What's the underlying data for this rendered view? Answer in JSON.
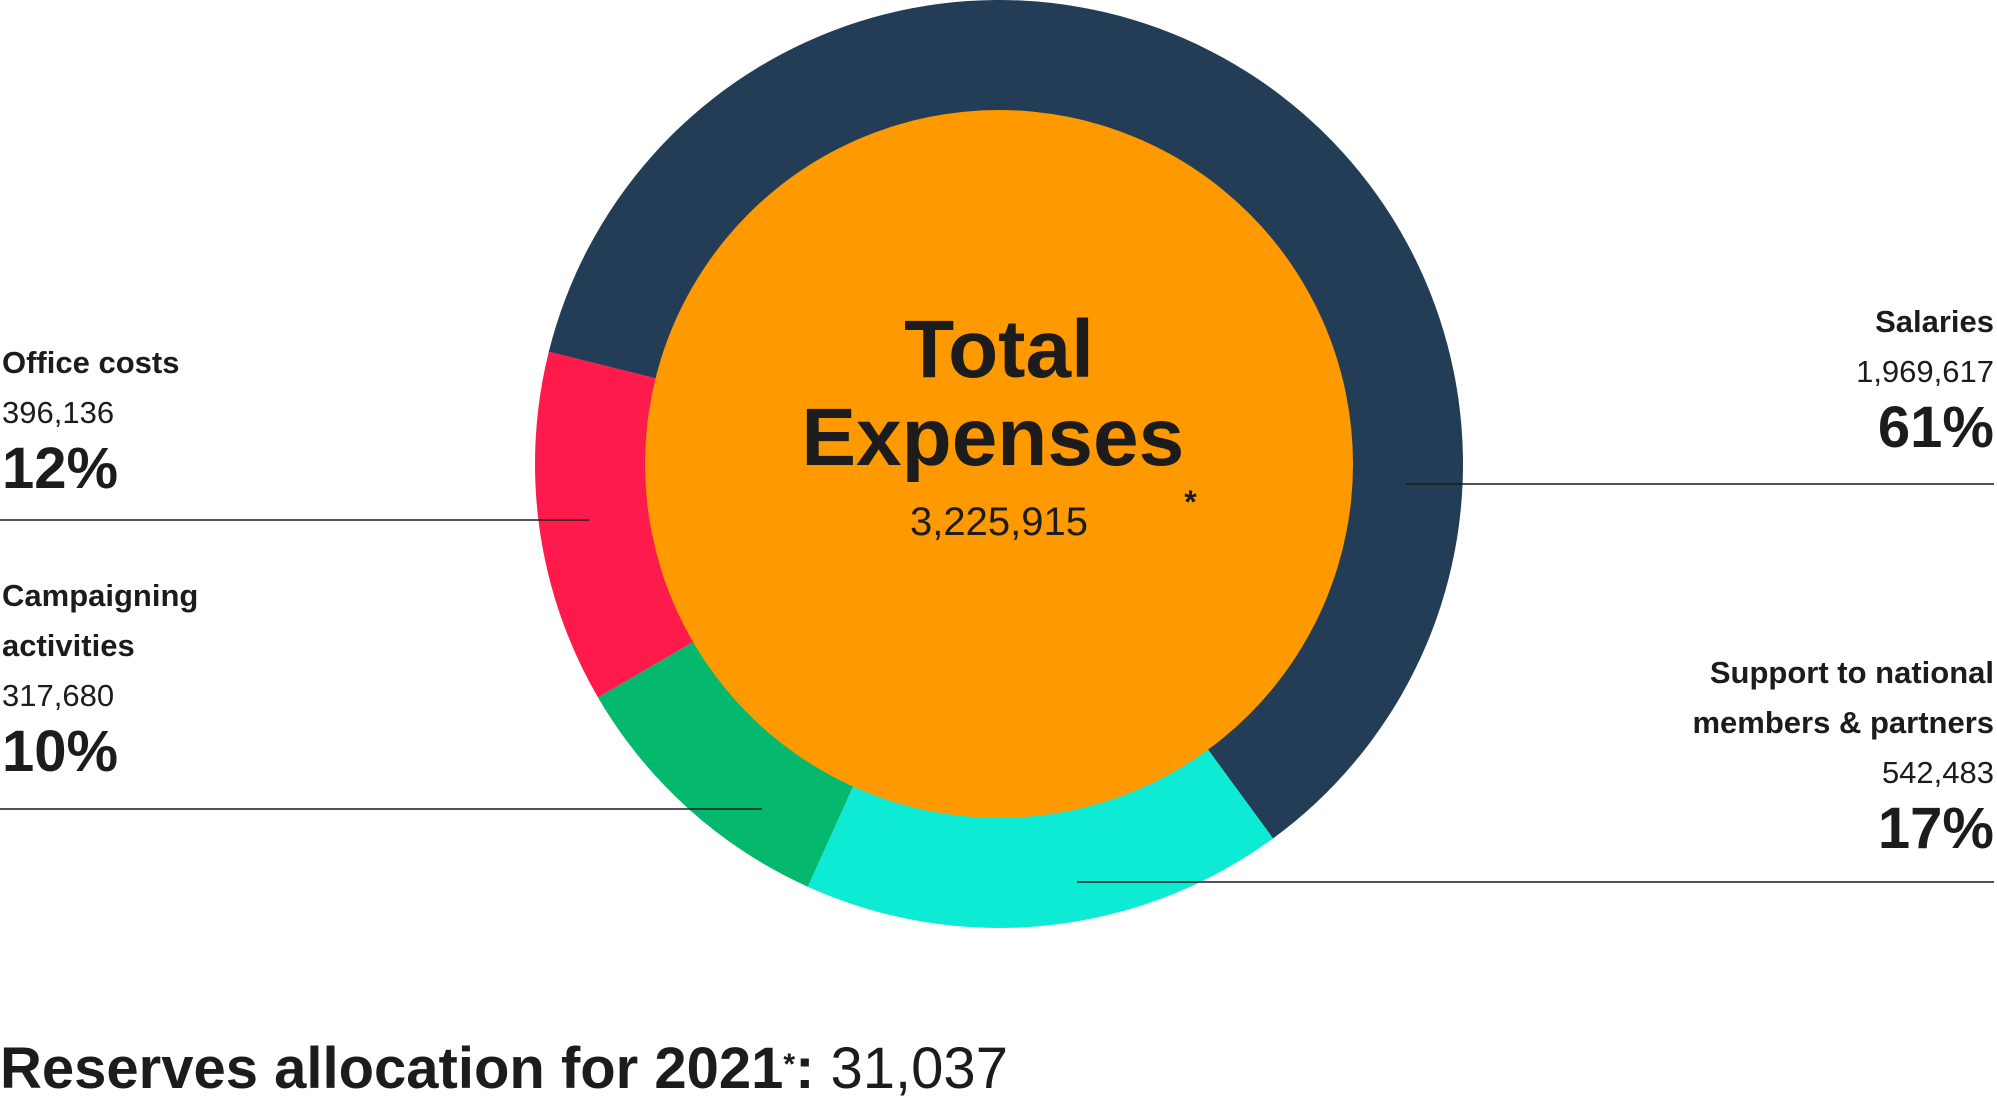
{
  "chart_data": {
    "type": "donut",
    "categories": [
      "Salaries",
      "Support to national members & partners",
      "Campaigning activities",
      "Office costs"
    ],
    "values": [
      1969617,
      542483,
      317680,
      396136
    ],
    "value_labels": [
      "1,969,617",
      "542,483",
      "317,680",
      "396,136"
    ],
    "percent_labels": [
      "61%",
      "17%",
      "10%",
      "12%"
    ],
    "colors": [
      "#233d57",
      "#0eebd4",
      "#04b86d",
      "#fe1a4a"
    ],
    "center_color": "#ff9900",
    "center_title": "Total Expenses",
    "center_mark": "*",
    "total_label": "3,225,915"
  },
  "footer": {
    "label": "Reserves allocation for 2021",
    "mark": "*",
    "separator": ":",
    "value": "31,037"
  }
}
